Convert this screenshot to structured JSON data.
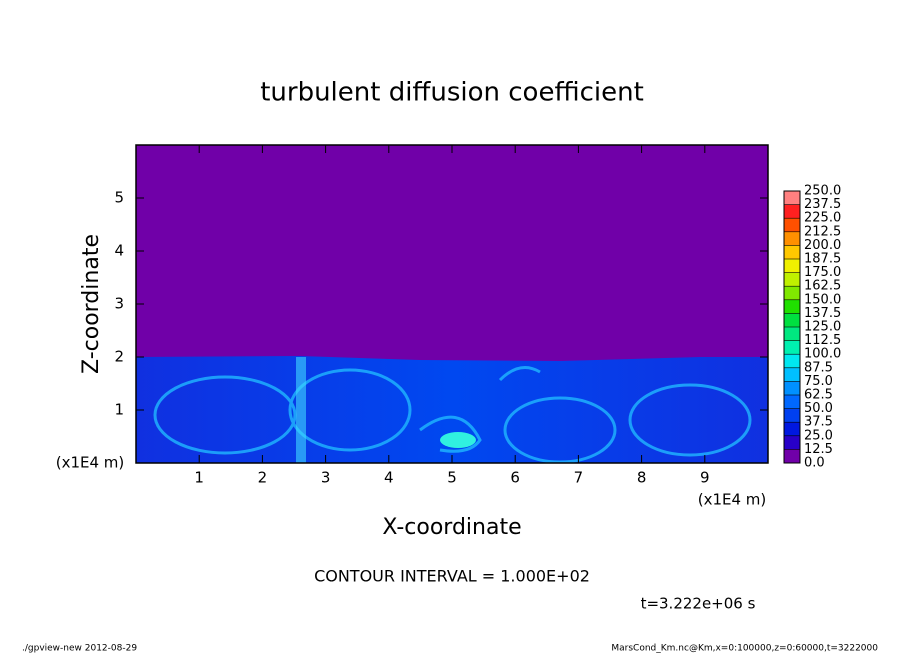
{
  "chart_data": {
    "type": "heatmap",
    "title": "turbulent diffusion coefficient",
    "x_label": "X-coordinate",
    "y_label": "Z-coordinate",
    "x_unit_left": "(x1E4 m)",
    "x_unit_right": "(x1E4 m)",
    "xlim": [
      0,
      10
    ],
    "ylim": [
      0,
      6
    ],
    "xticks": [
      1,
      2,
      3,
      4,
      5,
      6,
      7,
      8,
      9
    ],
    "yticks": [
      1,
      2,
      3,
      4,
      5
    ],
    "contour_note": "CONTOUR INTERVAL = 1.000E+02",
    "time_note": "t=3.222e+06 s",
    "footer_left": "./gpview-new  2012-08-29",
    "footer_right": "MarsCond_Km.nc@Km,x=0:100000,z=0:60000,t=3222000",
    "colorbar": {
      "levels": [
        {
          "value": 0,
          "label": "0.0"
        },
        {
          "value": 12.5,
          "label": "12.5"
        },
        {
          "value": 25,
          "label": "25.0"
        },
        {
          "value": 37.5,
          "label": "37.5"
        },
        {
          "value": 50,
          "label": "50.0"
        },
        {
          "value": 62.5,
          "label": "62.5"
        },
        {
          "value": 75,
          "label": "75.0"
        },
        {
          "value": 87.5,
          "label": "87.5"
        },
        {
          "value": 100,
          "label": "100.0"
        },
        {
          "value": 112.5,
          "label": "112.5"
        },
        {
          "value": 125,
          "label": "125.0"
        },
        {
          "value": 137.5,
          "label": "137.5"
        },
        {
          "value": 150,
          "label": "150.0"
        },
        {
          "value": 162.5,
          "label": "162.5"
        },
        {
          "value": 175,
          "label": "175.0"
        },
        {
          "value": 187.5,
          "label": "187.5"
        },
        {
          "value": 200,
          "label": "200.0"
        },
        {
          "value": 212.5,
          "label": "212.5"
        },
        {
          "value": 225,
          "label": "225.0"
        },
        {
          "value": 237.5,
          "label": "237.5"
        },
        {
          "value": 250,
          "label": "250.0"
        }
      ],
      "colors": [
        "#7000a8",
        "#2800c8",
        "#0018e0",
        "#0040f0",
        "#0068ff",
        "#0090ff",
        "#00c0ff",
        "#00e8f0",
        "#00f0b0",
        "#00e880",
        "#00e040",
        "#20e000",
        "#80e800",
        "#c0f000",
        "#f0f000",
        "#ffc800",
        "#ff9000",
        "#ff5000",
        "#ff2020",
        "#ff8080"
      ]
    }
  }
}
